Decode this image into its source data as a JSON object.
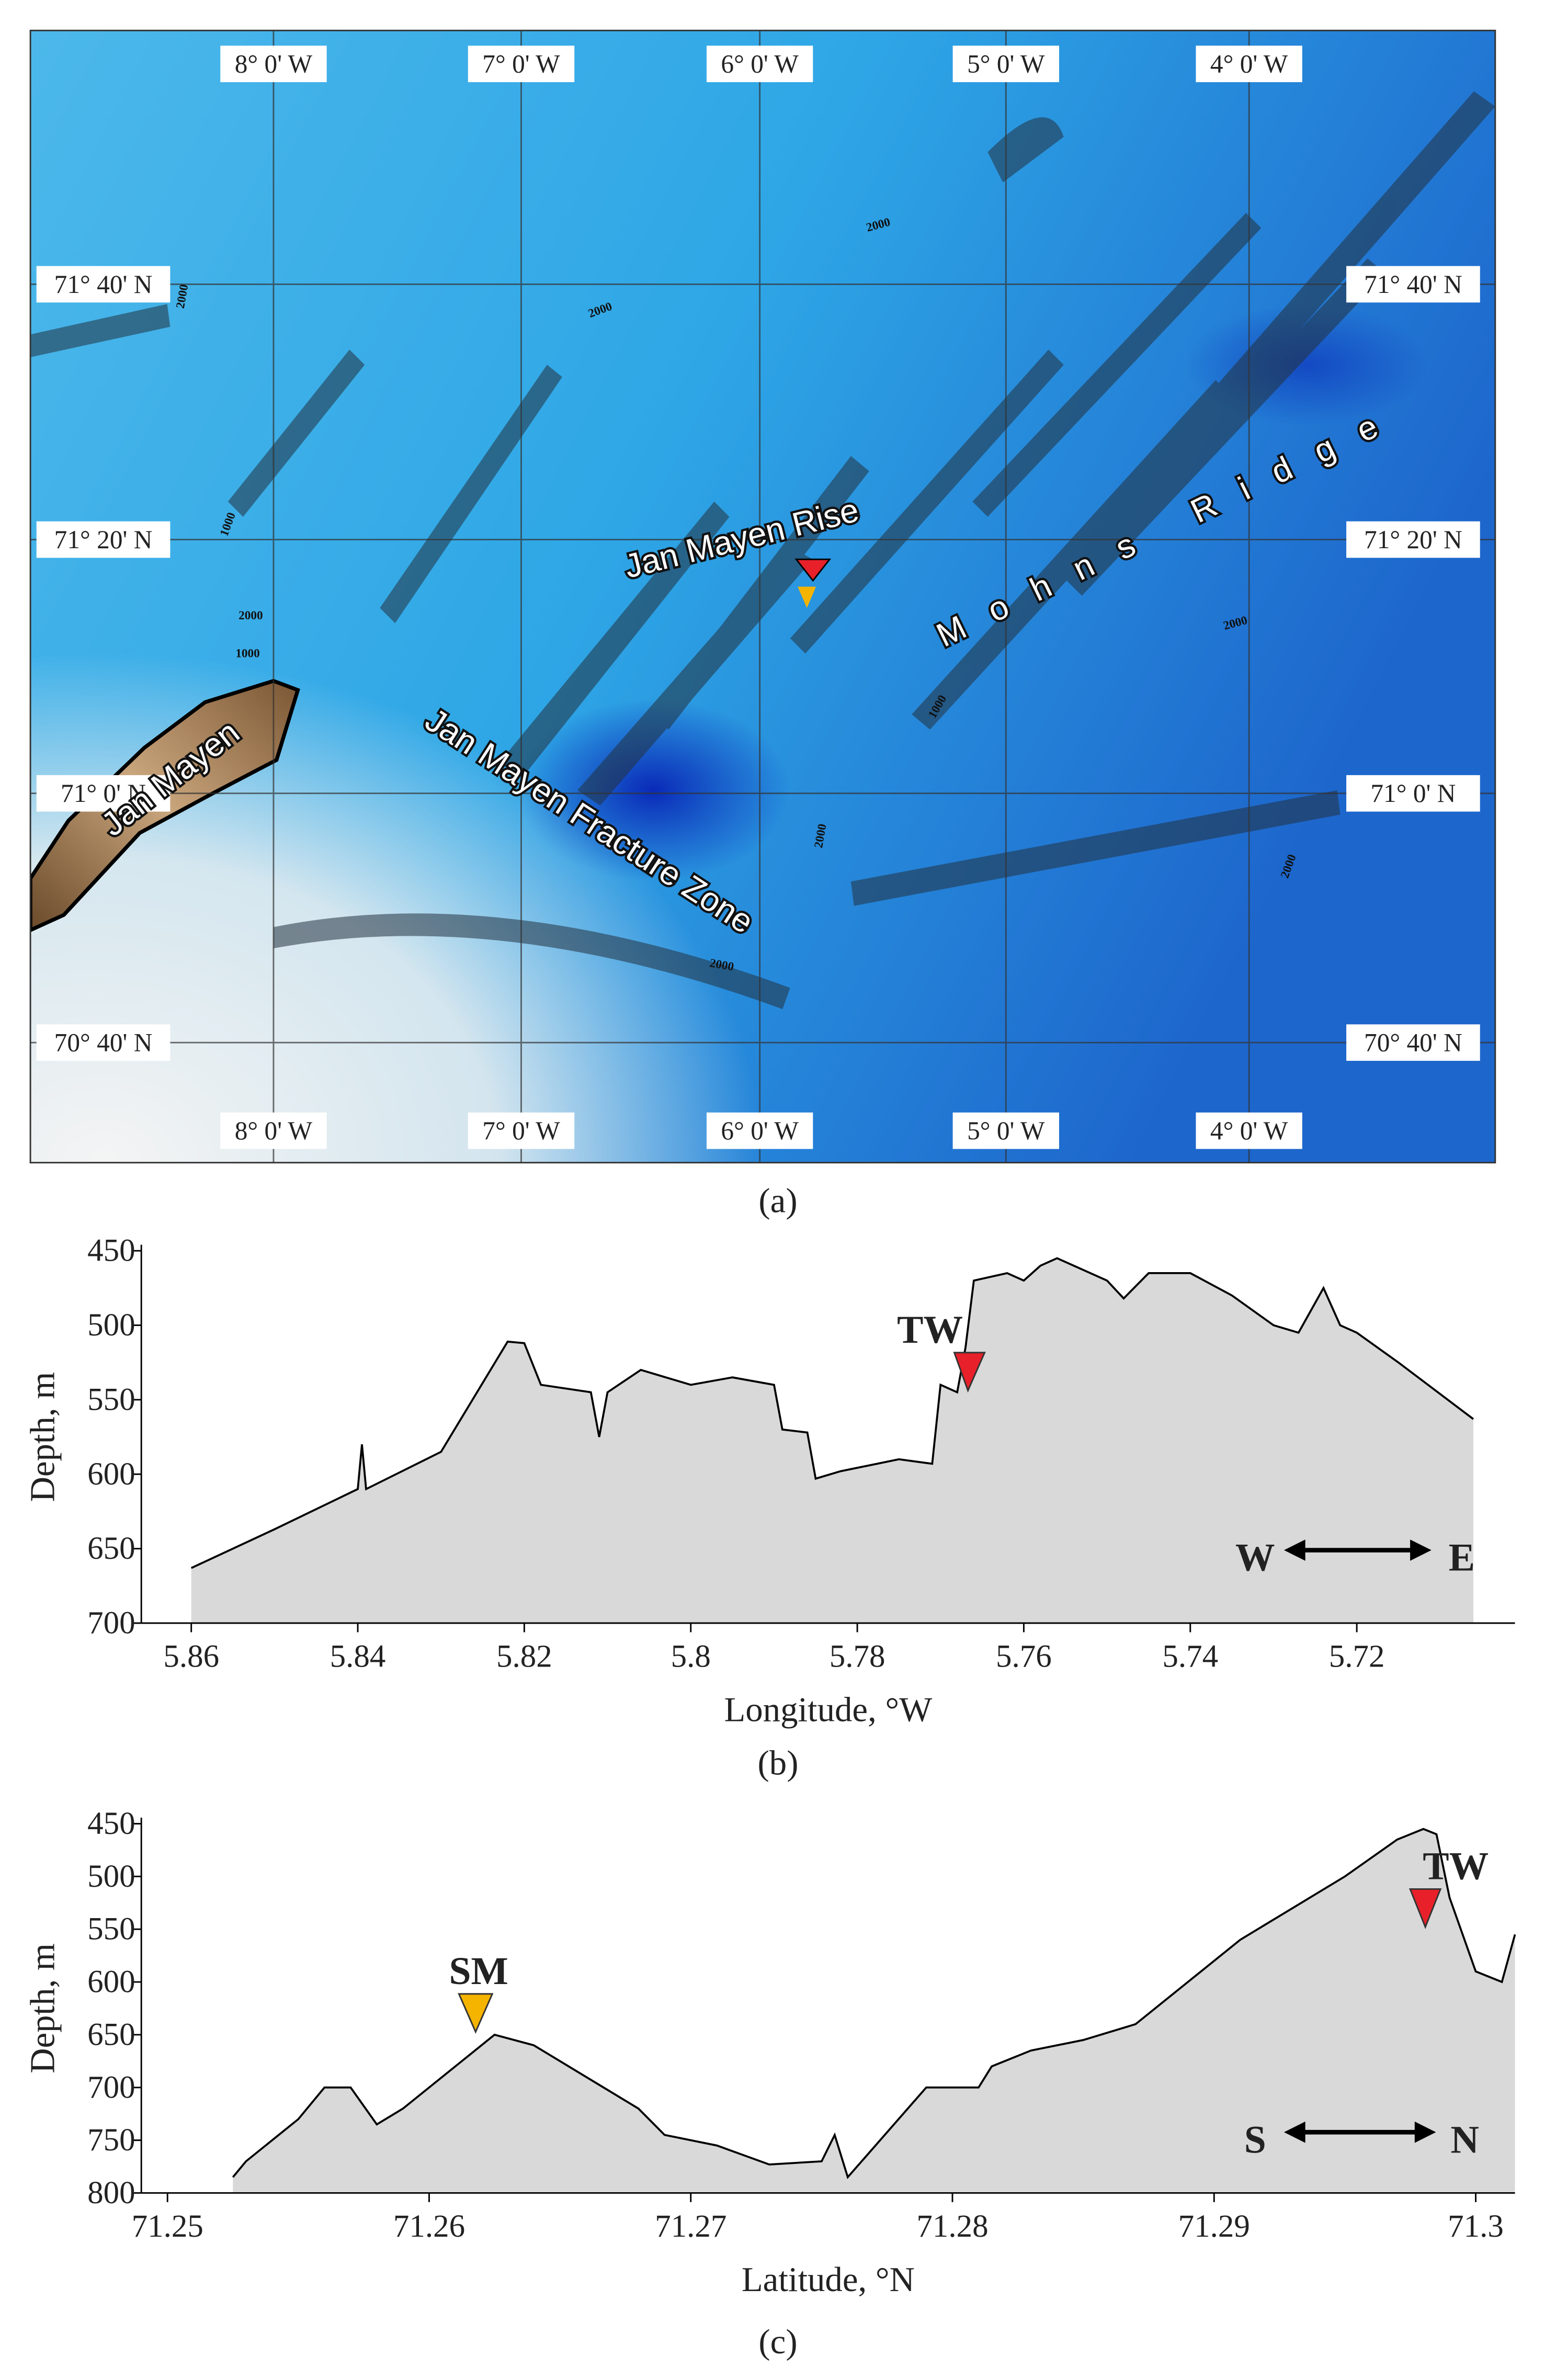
{
  "map": {
    "caption": "(a)",
    "longitude_labels": [
      "8° 0' W",
      "7° 0' W",
      "6° 0' W",
      "5° 0' W",
      "4° 0' W"
    ],
    "latitude_labels": [
      "71° 40' N",
      "71° 20' N",
      "71° 0' N",
      "70° 40' N"
    ],
    "place_labels": {
      "island": "Jan Mayen",
      "rise": "Jan Mayen Rise",
      "fracture_zone": "Jan Mayen Fracture Zone",
      "ridge": "Mohns Ridge"
    },
    "contour_labels": [
      2000,
      2000,
      2000,
      1000,
      2000,
      1000,
      2000,
      1000,
      2000,
      2000,
      2000
    ]
  },
  "chart_data": [
    {
      "type": "area",
      "caption": "(b)",
      "x_label": "Longitude, °W",
      "y_label": "Depth, m",
      "x": [
        5.86,
        5.85,
        5.84,
        5.8395,
        5.839,
        5.83,
        5.822,
        5.82,
        5.818,
        5.812,
        5.811,
        5.81,
        5.806,
        5.8,
        5.795,
        5.79,
        5.789,
        5.786,
        5.785,
        5.782,
        5.775,
        5.771,
        5.77,
        5.768,
        5.767,
        5.766,
        5.762,
        5.76,
        5.758,
        5.756,
        5.75,
        5.748,
        5.745,
        5.74,
        5.735,
        5.73,
        5.727,
        5.724,
        5.722,
        5.72,
        5.715,
        5.706
      ],
      "values": [
        663,
        637,
        610,
        580,
        610,
        585,
        511,
        512,
        540,
        545,
        575,
        545,
        530,
        540,
        535,
        540,
        570,
        572,
        603,
        598,
        590,
        593,
        540,
        545,
        515,
        470,
        465,
        470,
        460,
        455,
        470,
        482,
        465,
        465,
        480,
        500,
        505,
        475,
        500,
        505,
        525,
        563
      ],
      "xlim": [
        5.866,
        5.701
      ],
      "ylim": [
        700,
        450
      ],
      "xticks": [
        5.86,
        5.84,
        5.82,
        5.8,
        5.78,
        5.76,
        5.74,
        5.72
      ],
      "yticks": [
        450,
        500,
        550,
        600,
        650,
        700
      ],
      "color": "#d9d9d9",
      "line_color": "#000000",
      "annotations": [
        "TW",
        "W",
        "E"
      ]
    },
    {
      "type": "area",
      "caption": "(c)",
      "x_label": "Latitude, °N",
      "y_label": "Depth, m",
      "x": [
        71.2525,
        71.253,
        71.255,
        71.256,
        71.257,
        71.258,
        71.259,
        71.261,
        71.2625,
        71.264,
        71.266,
        71.268,
        71.269,
        71.271,
        71.273,
        71.275,
        71.2755,
        71.276,
        71.279,
        71.281,
        71.2815,
        71.283,
        71.285,
        71.287,
        71.289,
        71.291,
        71.293,
        71.295,
        71.297,
        71.298,
        71.2985,
        71.299,
        71.2995,
        71.3,
        71.301,
        71.3015
      ],
      "values": [
        785,
        770,
        730,
        700,
        700,
        735,
        720,
        680,
        650,
        660,
        690,
        720,
        745,
        755,
        773,
        770,
        745,
        785,
        700,
        700,
        680,
        665,
        655,
        640,
        600,
        560,
        530,
        500,
        465,
        455,
        460,
        520,
        555,
        590,
        600,
        555
      ],
      "xlim": [
        71.249,
        71.3015
      ],
      "ylim": [
        800,
        450
      ],
      "xticks": [
        71.25,
        71.26,
        71.27,
        71.28,
        71.29,
        71.3
      ],
      "yticks": [
        450,
        500,
        550,
        600,
        650,
        700,
        750,
        800
      ],
      "color": "#d9d9d9",
      "line_color": "#000000",
      "annotations": [
        "SM",
        "TW",
        "S",
        "N"
      ]
    }
  ]
}
